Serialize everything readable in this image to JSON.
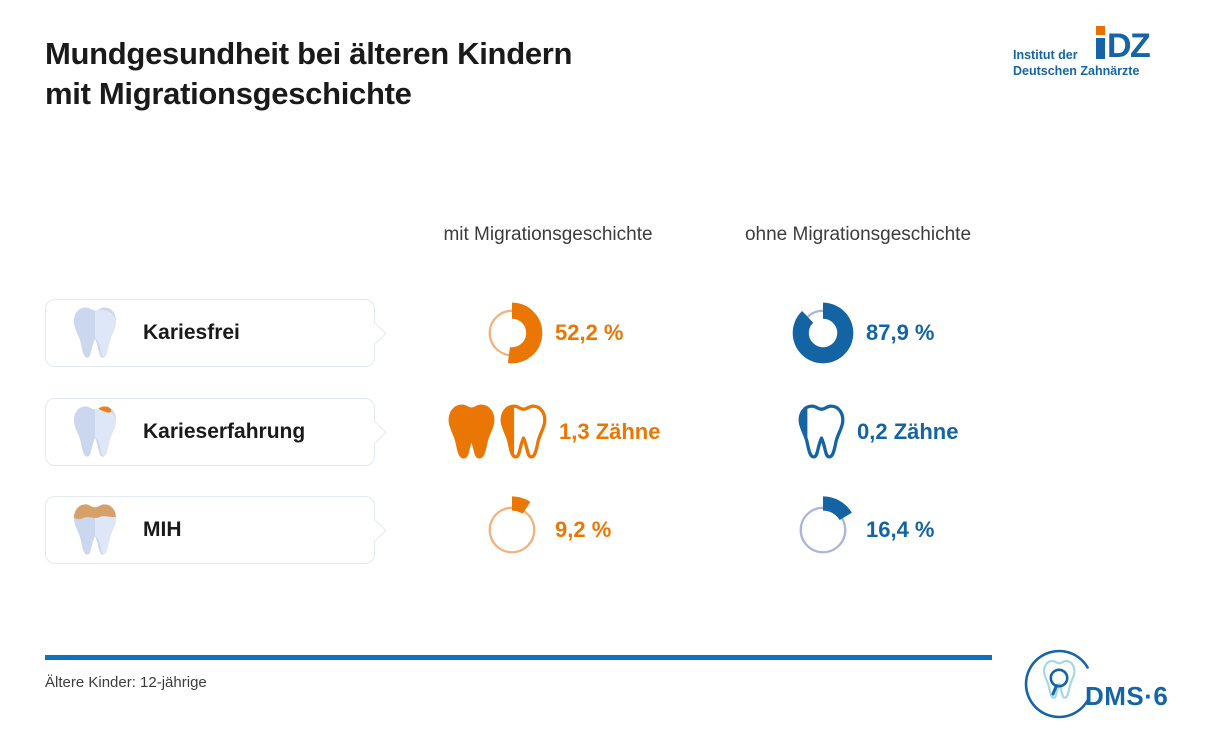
{
  "title": {
    "line1": "Mundgesundheit bei älteren Kindern",
    "line2": "mit Migrationsgeschichte"
  },
  "idz_logo": {
    "line1": "Institut der",
    "line2": "Deutschen Zahnärzte",
    "mark_letters": "DZ"
  },
  "columns": [
    {
      "label": "mit Migrationsgeschichte"
    },
    {
      "label": "ohne Migrationsgeschichte"
    }
  ],
  "rows": [
    {
      "label": "Kariesfrei",
      "icon": "tooth-plain",
      "mit": {
        "kind": "donut",
        "percent": 52.2,
        "display": "52,2 %",
        "color": "orange"
      },
      "ohne": {
        "kind": "donut",
        "percent": 87.9,
        "display": "87,9 %",
        "color": "blue"
      }
    },
    {
      "label": "Karieserfahrung",
      "icon": "tooth-caries",
      "mit": {
        "kind": "teeth",
        "count": 1.3,
        "display": "1,3 Zähne",
        "color": "orange"
      },
      "ohne": {
        "kind": "teeth",
        "count": 0.2,
        "display": "0,2 Zähne",
        "color": "blue"
      }
    },
    {
      "label": "MIH",
      "icon": "tooth-mih",
      "mit": {
        "kind": "donut",
        "percent": 9.2,
        "display": "9,2 %",
        "color": "orange"
      },
      "ohne": {
        "kind": "donut",
        "percent": 16.4,
        "display": "16,4 %",
        "color": "blue"
      }
    }
  ],
  "footer": {
    "note": "Ältere Kinder: 12-jährige",
    "dms_label": "DMS·6"
  },
  "colors": {
    "orange": "#EA7603",
    "orange_light": "#F2B27D",
    "blue": "#1464A4",
    "blue_light": "#A8B6DB",
    "accent_line": "#0C72BA",
    "brand_blue": "#1565A6",
    "brand_orange": "#E87200",
    "tooth_body": "#CBD7EE",
    "tooth_highlight": "#DEE6F7",
    "mih_cap": "#D7A069",
    "caries_spot": "#E8821E",
    "card_border": "#E2E8F4",
    "dms_tooth": "#A5D8E4",
    "text_dark": "#1A1A1A",
    "text_gray": "#3C3C3C"
  },
  "chart_data": {
    "type": "table",
    "title": "Mundgesundheit bei älteren Kindern mit Migrationsgeschichte",
    "categories": [
      "Kariesfrei",
      "Karieserfahrung",
      "MIH"
    ],
    "units": [
      "%",
      "Zähne",
      "%"
    ],
    "series": [
      {
        "name": "mit Migrationsgeschichte",
        "values": [
          52.2,
          1.3,
          9.2
        ]
      },
      {
        "name": "ohne Migrationsgeschichte",
        "values": [
          87.9,
          0.2,
          16.4
        ]
      }
    ],
    "note": "Ältere Kinder: 12-jährige",
    "legend_position": "top",
    "grid": false
  }
}
